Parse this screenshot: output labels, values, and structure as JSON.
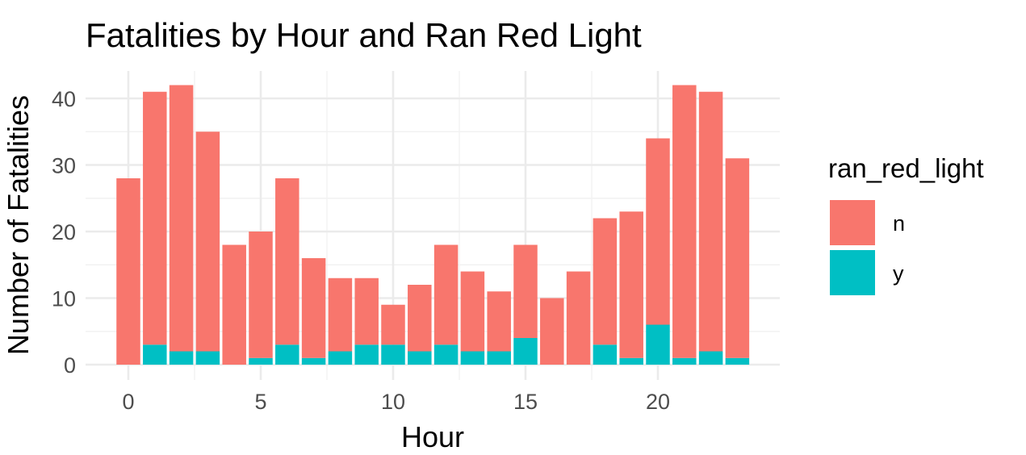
{
  "chart_data": {
    "type": "bar",
    "stacked": true,
    "title": "Fatalities by Hour and Ran Red Light",
    "xlabel": "Hour",
    "ylabel": "Number of Fatalities",
    "x": [
      0,
      1,
      2,
      3,
      4,
      5,
      6,
      7,
      8,
      9,
      10,
      11,
      12,
      13,
      14,
      15,
      16,
      17,
      18,
      19,
      20,
      21,
      22,
      23
    ],
    "x_ticks": [
      0,
      5,
      10,
      15,
      20
    ],
    "y_ticks": [
      0,
      10,
      20,
      30,
      40
    ],
    "xlim": [
      -0.7,
      23.7
    ],
    "ylim": [
      0,
      44
    ],
    "grid": true,
    "legend": {
      "title": "ran_red_light",
      "placement": "right"
    },
    "series": [
      {
        "name": "n",
        "color": "#F8766D",
        "values": [
          28,
          38,
          40,
          33,
          18,
          19,
          25,
          15,
          11,
          10,
          6,
          10,
          15,
          12,
          9,
          14,
          10,
          14,
          19,
          22,
          28,
          41,
          39,
          30
        ]
      },
      {
        "name": "y",
        "color": "#00BFC4",
        "values": [
          0,
          3,
          2,
          2,
          0,
          1,
          3,
          1,
          2,
          3,
          3,
          2,
          3,
          2,
          2,
          4,
          0,
          0,
          3,
          1,
          6,
          1,
          2,
          1
        ]
      }
    ]
  }
}
